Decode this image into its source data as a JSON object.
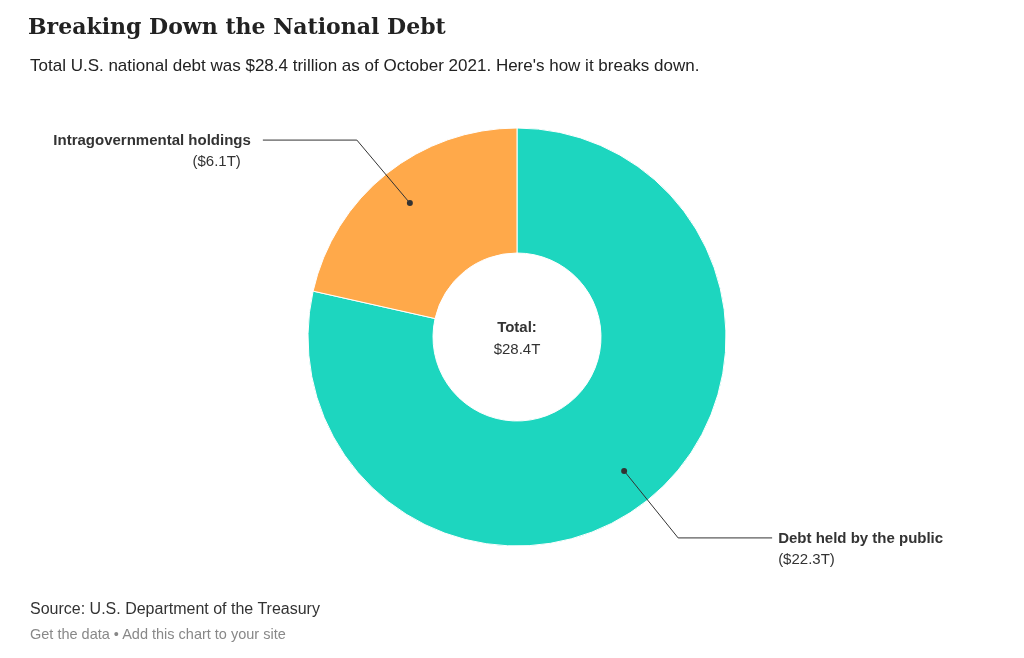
{
  "chart_data": {
    "type": "donut",
    "title": "Breaking Down the National Debt",
    "subtitle": "Total U.S. national debt was $28.4 trillion as of October 2021. Here's how it breaks down.",
    "categories": [
      "Debt held by the public",
      "Intragovernmental holdings"
    ],
    "values": [
      22.3,
      6.1
    ],
    "value_labels": [
      "($22.3T)",
      "($6.1T)"
    ],
    "colors": [
      "#1dd6bf",
      "#ffa94a"
    ],
    "annotations": [
      "Total:",
      "$28.4T",
      "Source: U.S. Department of the Treasury",
      "Get the data • Add this chart to your site"
    ],
    "legend": false
  }
}
